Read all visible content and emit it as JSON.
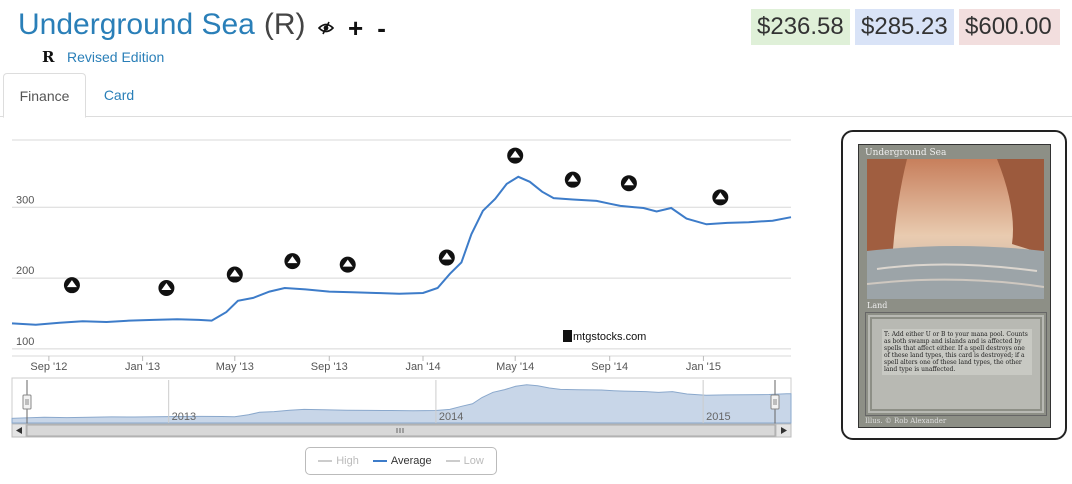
{
  "card": {
    "name": "Underground Sea",
    "rarity": "(R)",
    "set_symbol": "R",
    "set_name": "Revised Edition"
  },
  "title_icons": {
    "eye": "eye-slash-icon",
    "plus": "+",
    "minus": "-"
  },
  "prices": {
    "low": "$236.58",
    "average": "$285.23",
    "high": "$600.00"
  },
  "colors": {
    "link": "#2a7fb8",
    "price_low_bg": "#dff0d8",
    "price_avg_bg": "#d9e3f7",
    "price_high_bg": "#f2dede",
    "average_line": "#3d7cc9"
  },
  "tabs": [
    {
      "label": "Finance",
      "active": true
    },
    {
      "label": "Card",
      "active": false
    }
  ],
  "chart_data": {
    "type": "line",
    "y_ticks": [
      "100",
      "200",
      "300"
    ],
    "ylim": [
      90,
      395
    ],
    "x_ticks": [
      "Sep '12",
      "Jan '13",
      "May '13",
      "Sep '13",
      "Jan '14",
      "May '14",
      "Sep '14",
      "Jan '15"
    ],
    "navigator_years": [
      "2013",
      "2014",
      "2015"
    ],
    "watermark": "mtgstocks.com",
    "grid": true,
    "series": [
      {
        "name": "Average",
        "points": [
          [
            "2012-07-15",
            136
          ],
          [
            "2012-08-15",
            134
          ],
          [
            "2012-09-15",
            137
          ],
          [
            "2012-10-15",
            139
          ],
          [
            "2012-11-15",
            138
          ],
          [
            "2012-12-15",
            140
          ],
          [
            "2013-01-15",
            141
          ],
          [
            "2013-02-15",
            142
          ],
          [
            "2013-03-15",
            141
          ],
          [
            "2013-04-01",
            140
          ],
          [
            "2013-04-20",
            152
          ],
          [
            "2013-05-05",
            168
          ],
          [
            "2013-05-25",
            172
          ],
          [
            "2013-06-15",
            181
          ],
          [
            "2013-07-05",
            186
          ],
          [
            "2013-08-01",
            184
          ],
          [
            "2013-09-01",
            181
          ],
          [
            "2013-10-01",
            180
          ],
          [
            "2013-11-01",
            179
          ],
          [
            "2013-12-01",
            178
          ],
          [
            "2014-01-01",
            179
          ],
          [
            "2014-01-20",
            186
          ],
          [
            "2014-02-05",
            206
          ],
          [
            "2014-02-20",
            222
          ],
          [
            "2014-03-05",
            262
          ],
          [
            "2014-03-20",
            295
          ],
          [
            "2014-04-05",
            312
          ],
          [
            "2014-04-20",
            333
          ],
          [
            "2014-05-05",
            343
          ],
          [
            "2014-05-20",
            336
          ],
          [
            "2014-06-05",
            322
          ],
          [
            "2014-06-20",
            313
          ],
          [
            "2014-07-15",
            311
          ],
          [
            "2014-08-15",
            309
          ],
          [
            "2014-09-01",
            305
          ],
          [
            "2014-09-15",
            302
          ],
          [
            "2014-10-15",
            299
          ],
          [
            "2014-11-01",
            294
          ],
          [
            "2014-11-20",
            299
          ],
          [
            "2014-12-10",
            284
          ],
          [
            "2015-01-05",
            276
          ],
          [
            "2015-02-01",
            278
          ],
          [
            "2015-03-01",
            279
          ],
          [
            "2015-04-01",
            281
          ],
          [
            "2015-04-25",
            286
          ]
        ]
      }
    ],
    "legend": [
      "High",
      "Average",
      "Low"
    ],
    "legend_active": "Average",
    "event_icons": [
      {
        "name": "set-icon-a",
        "date": "2012-10-01",
        "value": 190
      },
      {
        "name": "set-icon-b",
        "date": "2013-02-01",
        "value": 186
      },
      {
        "name": "set-icon-c",
        "date": "2013-05-01",
        "value": 205
      },
      {
        "name": "set-icon-m14",
        "date": "2013-07-15",
        "value": 224
      },
      {
        "name": "set-icon-theros",
        "date": "2013-09-25",
        "value": 219
      },
      {
        "name": "set-icon-born-of-gods",
        "date": "2014-02-01",
        "value": 229
      },
      {
        "name": "set-icon-journey",
        "date": "2014-05-01",
        "value": 373
      },
      {
        "name": "set-icon-m15",
        "date": "2014-07-15",
        "value": 339
      },
      {
        "name": "set-icon-khans",
        "date": "2014-09-26",
        "value": 334
      },
      {
        "name": "set-icon-fate",
        "date": "2015-01-23",
        "value": 314
      }
    ]
  },
  "card_image": {
    "title": "Underground Sea",
    "type": "Land",
    "rules": "T: Add either U or B to your mana pool. Counts as both swamp and islands and is affected by spells that affect either. If a spell destroys one of these land types, this card is destroyed; if a spell alters one of these land types, the other land type is unaffected.",
    "illustrator": "Illus. © Rob Alexander"
  }
}
